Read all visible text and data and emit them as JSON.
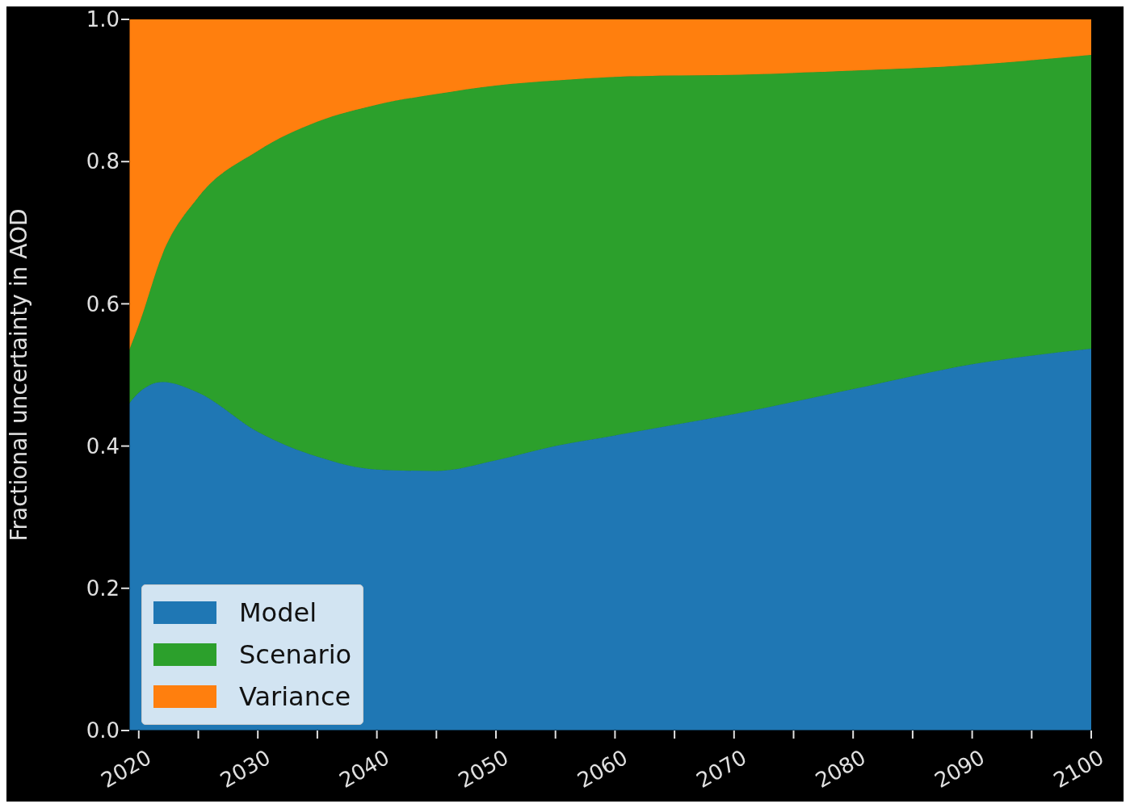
{
  "chart_data": {
    "type": "area",
    "stacked": true,
    "ylabel": "Fractional uncertainty in AOD",
    "x": [
      2019.2,
      2020,
      2022,
      2025,
      2030,
      2035,
      2040,
      2045,
      2050,
      2055,
      2060,
      2065,
      2070,
      2080,
      2090,
      2100
    ],
    "series": [
      {
        "name": "Model",
        "color": "#1f77b4",
        "values": [
          0.46,
          0.475,
          0.49,
          0.475,
          0.42,
          0.385,
          0.367,
          0.365,
          0.38,
          0.4,
          0.415,
          0.43,
          0.445,
          0.48,
          0.515,
          0.537
        ]
      },
      {
        "name": "Scenario",
        "color": "#2ca02c",
        "values": [
          0.075,
          0.095,
          0.18,
          0.275,
          0.395,
          0.471,
          0.513,
          0.53,
          0.527,
          0.514,
          0.504,
          0.491,
          0.477,
          0.448,
          0.421,
          0.413
        ]
      },
      {
        "name": "Variance",
        "color": "#ff7f0e",
        "values": [
          0.465,
          0.43,
          0.33,
          0.25,
          0.185,
          0.144,
          0.12,
          0.105,
          0.093,
          0.086,
          0.081,
          0.079,
          0.078,
          0.072,
          0.064,
          0.05
        ]
      }
    ],
    "xlim": [
      2019.2,
      2100
    ],
    "xticks": [
      2020,
      {
        "value": 2025,
        "label": null
      },
      2030,
      {
        "value": 2035,
        "label": null
      },
      2040,
      {
        "value": 2045,
        "label": null
      },
      2050,
      {
        "value": 2055,
        "label": null
      },
      2060,
      {
        "value": 2065,
        "label": null
      },
      2070,
      {
        "value": 2075,
        "label": null
      },
      2080,
      {
        "value": 2085,
        "label": null
      },
      2090,
      {
        "value": 2095,
        "label": null
      },
      2100
    ],
    "ylim": [
      0,
      1
    ],
    "yticks": [
      {
        "value": 0,
        "label": "0.0"
      },
      {
        "value": 0.2,
        "label": "0.2"
      },
      {
        "value": 0.4,
        "label": "0.4"
      },
      {
        "value": 0.6,
        "label": "0.6"
      },
      {
        "value": 0.8,
        "label": "0.8"
      },
      {
        "value": 1,
        "label": "1.0"
      }
    ],
    "grid": false,
    "legend": "bottom left"
  }
}
